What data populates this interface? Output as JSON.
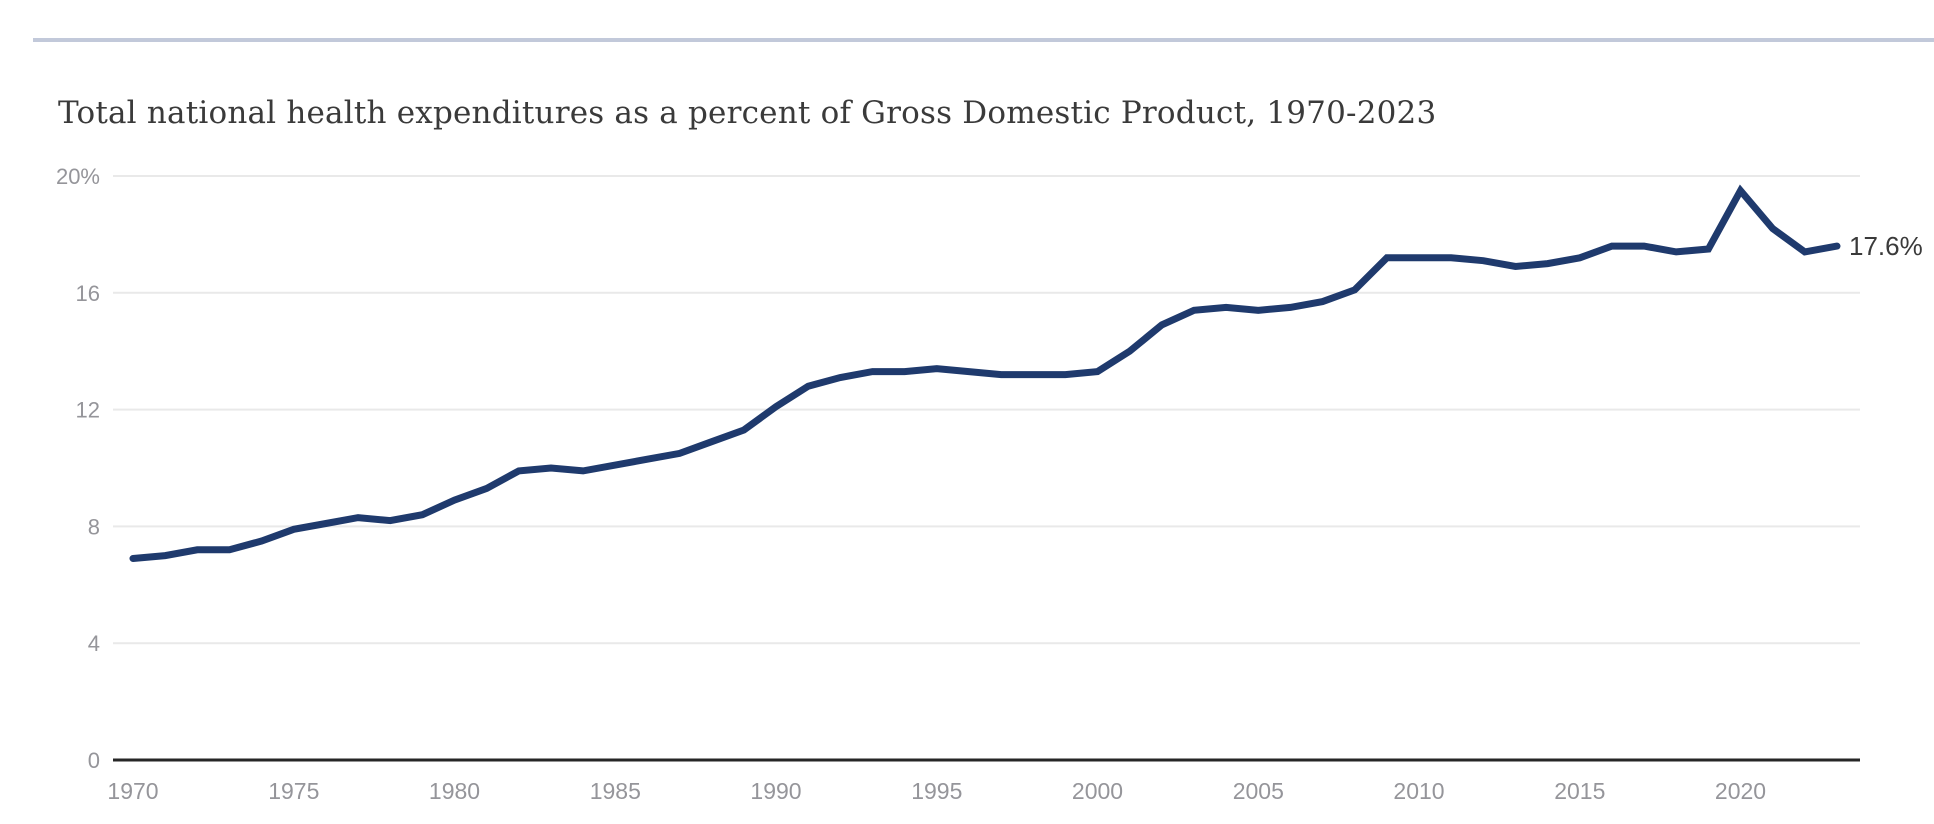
{
  "chart_data": {
    "type": "line",
    "title": "Total national health expenditures as a percent of Gross Domestic Product, 1970-2023",
    "xlabel": "",
    "ylabel": "",
    "xlim": [
      1970,
      2023
    ],
    "ylim": [
      0,
      20
    ],
    "grid": "horizontal",
    "legend": "none",
    "end_label": "17.6%",
    "x_ticks": [
      1970,
      1975,
      1980,
      1985,
      1990,
      1995,
      2000,
      2005,
      2010,
      2015,
      2020
    ],
    "y_ticks": [
      {
        "value": 20,
        "label": "20%"
      },
      {
        "value": 16,
        "label": "16"
      },
      {
        "value": 12,
        "label": "12"
      },
      {
        "value": 8,
        "label": "8"
      },
      {
        "value": 4,
        "label": "4"
      },
      {
        "value": 0,
        "label": "0"
      }
    ],
    "years": [
      1970,
      1971,
      1972,
      1973,
      1974,
      1975,
      1976,
      1977,
      1978,
      1979,
      1980,
      1981,
      1982,
      1983,
      1984,
      1985,
      1986,
      1987,
      1988,
      1989,
      1990,
      1991,
      1992,
      1993,
      1994,
      1995,
      1996,
      1997,
      1998,
      1999,
      2000,
      2001,
      2002,
      2003,
      2004,
      2005,
      2006,
      2007,
      2008,
      2009,
      2010,
      2011,
      2012,
      2013,
      2014,
      2015,
      2016,
      2017,
      2018,
      2019,
      2020,
      2021,
      2022,
      2023
    ],
    "series": [
      {
        "name": "Total national health expenditures as a percent of GDP",
        "values": [
          6.9,
          7.0,
          7.2,
          7.2,
          7.5,
          7.9,
          8.1,
          8.3,
          8.2,
          8.4,
          8.9,
          9.3,
          9.9,
          10.0,
          9.9,
          10.1,
          10.3,
          10.5,
          10.9,
          11.3,
          12.1,
          12.8,
          13.1,
          13.3,
          13.3,
          13.4,
          13.3,
          13.2,
          13.2,
          13.2,
          13.3,
          14.0,
          14.9,
          15.4,
          15.5,
          15.4,
          15.5,
          15.7,
          16.1,
          17.2,
          17.2,
          17.2,
          17.1,
          16.9,
          17.0,
          17.2,
          17.6,
          17.6,
          17.4,
          17.5,
          19.5,
          18.2,
          17.4,
          17.6
        ]
      }
    ],
    "colors": {
      "line": "#1f3a6d",
      "grid": "#e9e9e9",
      "axis": "#262626",
      "tick_label": "#95959a",
      "title_text": "#3a3a3a",
      "end_label_text": "#3a3a3a",
      "top_rule": "#c2c9da",
      "background": "#ffffff"
    }
  }
}
